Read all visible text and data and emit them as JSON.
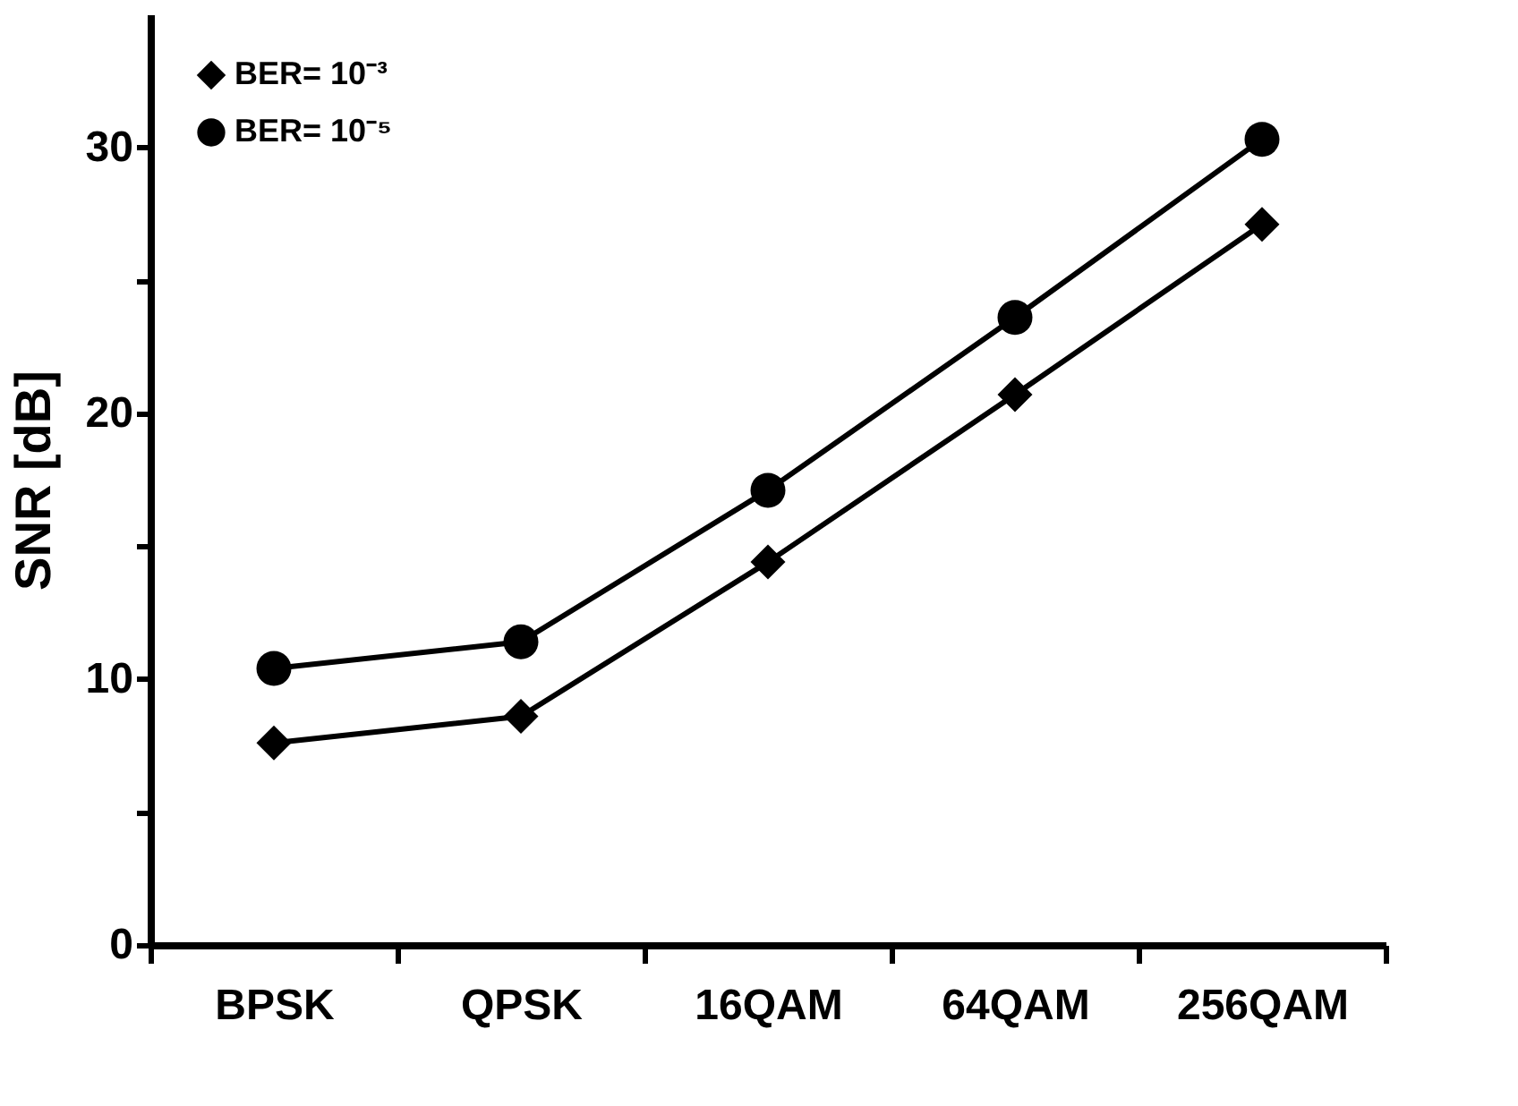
{
  "chart_data": {
    "type": "line",
    "ylabel": "SNR [dB]",
    "categories": [
      "BPSK",
      "QPSK",
      "16QAM",
      "64QAM",
      "256QAM"
    ],
    "series": [
      {
        "name": "BER= 10⁻³",
        "color": "#000000",
        "marker": "diamond",
        "values": [
          7.6,
          8.6,
          14.4,
          20.7,
          27.1
        ]
      },
      {
        "name": "BER= 10⁻⁵",
        "color": "#000000",
        "marker": "circle",
        "values": [
          10.4,
          11.4,
          17.1,
          23.6,
          30.3
        ]
      }
    ],
    "ylim": [
      0,
      35
    ],
    "yticks": [
      0,
      {
        "value": 5,
        "label": null
      },
      10,
      {
        "value": 15,
        "label": null
      },
      20,
      {
        "value": 25,
        "label": null
      },
      30
    ],
    "grid": false,
    "legend": "top left",
    "line_style": "solid"
  }
}
